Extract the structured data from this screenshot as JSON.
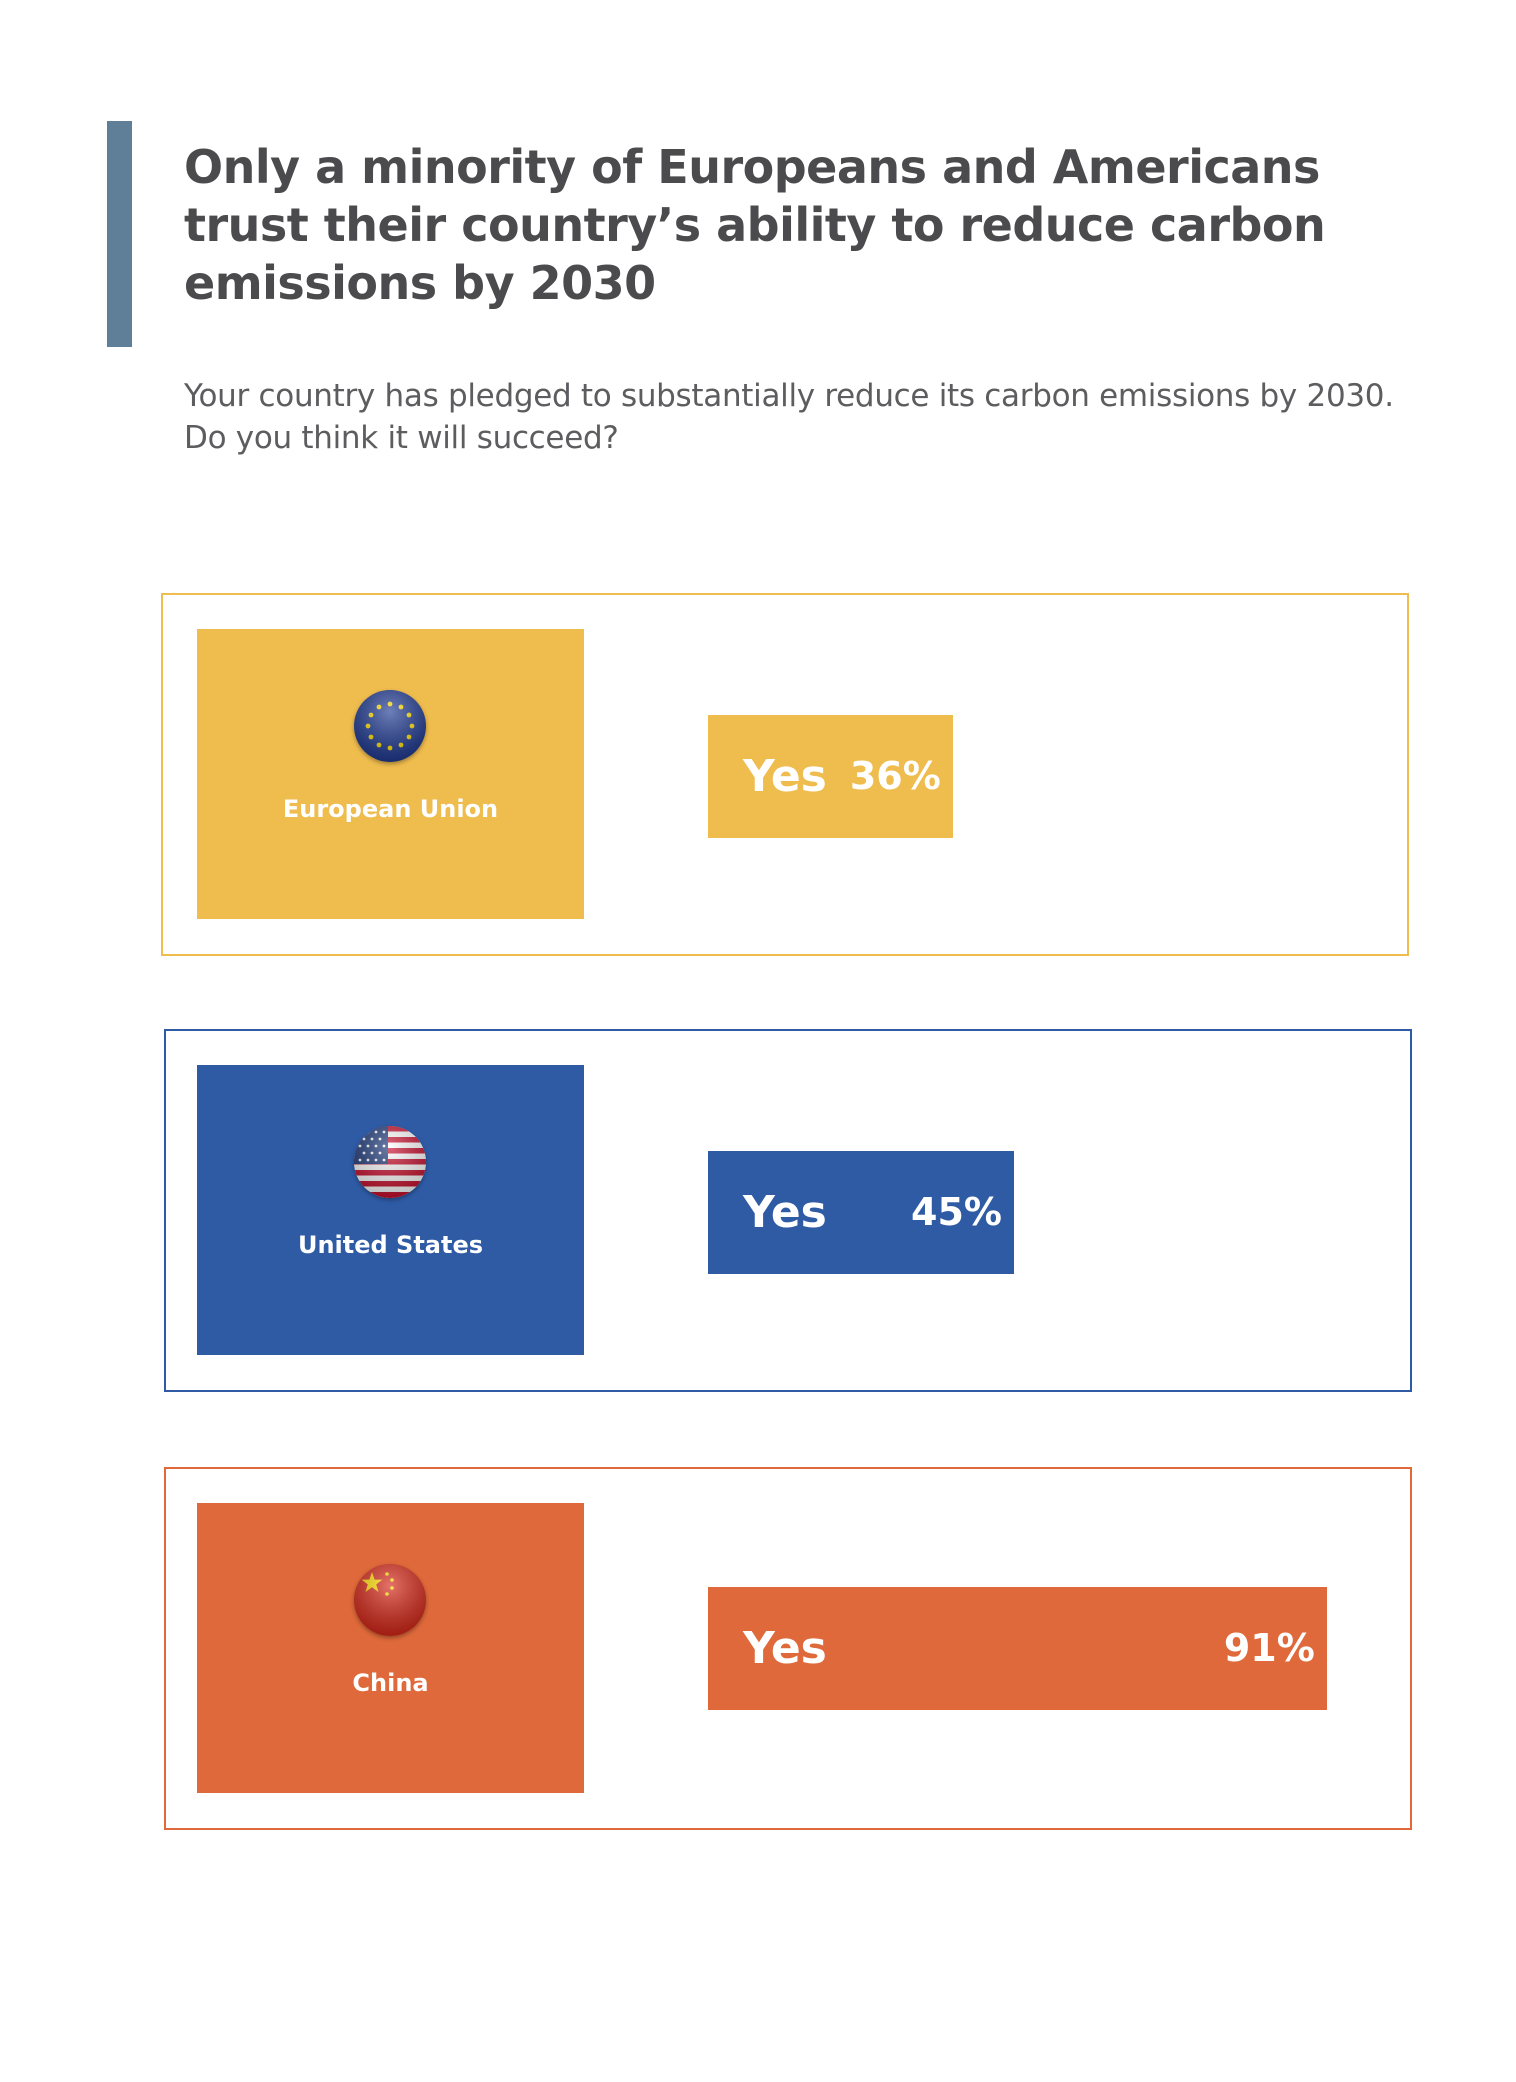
{
  "title": "Only a minority of Europeans and Americans trust their country’s ability to reduce carbon emissions by 2030",
  "subtitle": "Your country has pledged to substantially reduce its carbon emissions by 2030. Do you think it will succeed?",
  "chart_data": {
    "type": "bar",
    "title": "Only a minority of Europeans and Americans trust their country’s ability to reduce carbon emissions by 2030",
    "subtitle": "Your country has pledged to substantially reduce its carbon emissions by 2030. Do you think it will succeed?",
    "categories": [
      "European Union",
      "United States",
      "China"
    ],
    "series": [
      {
        "name": "Yes",
        "values": [
          36,
          45,
          91
        ]
      }
    ],
    "ylim": [
      0,
      100
    ],
    "grid": false,
    "items": [
      {
        "country": "European Union",
        "flag": "eu-flag-icon",
        "yes_label": "Yes",
        "value": 36,
        "value_label": "36%",
        "color": "#efbc4e"
      },
      {
        "country": "United States",
        "flag": "us-flag-icon",
        "yes_label": "Yes",
        "value": 45,
        "value_label": "45%",
        "color": "#2f5ba5"
      },
      {
        "country": "China",
        "flag": "china-flag-icon",
        "yes_label": "Yes",
        "value": 91,
        "value_label": "91%",
        "color": "#df693a"
      }
    ]
  }
}
